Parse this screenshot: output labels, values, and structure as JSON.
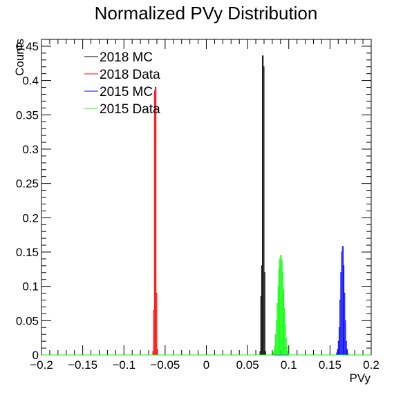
{
  "chart_data": {
    "type": "line",
    "style": "step-histogram",
    "title": "Normalized PVy Distribution",
    "xlabel": "PVy",
    "ylabel": "Counts",
    "xlim": [
      -0.2,
      0.2
    ],
    "ylim": [
      0,
      0.46
    ],
    "x_ticks": [
      -0.2,
      -0.15,
      -0.1,
      -0.05,
      0,
      0.05,
      0.1,
      0.15,
      0.2
    ],
    "x_tick_labels": [
      "−0.2",
      "−0.15",
      "−0.1",
      "−0.05",
      "0",
      "0.05",
      "0.1",
      "0.15",
      "0.2"
    ],
    "y_ticks": [
      0,
      0.05,
      0.1,
      0.15,
      0.2,
      0.25,
      0.3,
      0.35,
      0.4,
      0.45
    ],
    "y_tick_labels": [
      "0",
      "0.05",
      "0.1",
      "0.15",
      "0.2",
      "0.25",
      "0.3",
      "0.35",
      "0.4",
      "0.45"
    ],
    "grid": false,
    "legend_position": "top-left",
    "bin_width": 0.001,
    "series": [
      {
        "name": "2018 MC",
        "color": "#000000",
        "bins": [
          [
            0.065,
            0.005
          ],
          [
            0.066,
            0.085
          ],
          [
            0.067,
            0.13
          ],
          [
            0.068,
            0.436
          ],
          [
            0.069,
            0.42
          ],
          [
            0.07,
            0.12
          ],
          [
            0.071,
            0.005
          ]
        ]
      },
      {
        "name": "2018 Data",
        "color": "#ff0000",
        "bins": [
          [
            -0.065,
            0.005
          ],
          [
            -0.064,
            0.065
          ],
          [
            -0.063,
            0.385
          ],
          [
            -0.062,
            0.39
          ],
          [
            -0.061,
            0.09
          ],
          [
            -0.06,
            0.008
          ]
        ]
      },
      {
        "name": "2015 MC",
        "color": "#0000ff",
        "bins": [
          [
            0.158,
            0.003
          ],
          [
            0.159,
            0.008
          ],
          [
            0.16,
            0.02
          ],
          [
            0.161,
            0.04
          ],
          [
            0.162,
            0.08
          ],
          [
            0.163,
            0.12
          ],
          [
            0.164,
            0.15
          ],
          [
            0.165,
            0.158
          ],
          [
            0.166,
            0.13
          ],
          [
            0.167,
            0.09
          ],
          [
            0.168,
            0.05
          ],
          [
            0.169,
            0.02
          ],
          [
            0.17,
            0.008
          ],
          [
            0.171,
            0.002
          ]
        ]
      },
      {
        "name": "2015 Data",
        "color": "#00ff00",
        "bins": [
          [
            0.081,
            0.003
          ],
          [
            0.082,
            0.006
          ],
          [
            0.083,
            0.013
          ],
          [
            0.084,
            0.03
          ],
          [
            0.085,
            0.05
          ],
          [
            0.086,
            0.075
          ],
          [
            0.087,
            0.1
          ],
          [
            0.088,
            0.125
          ],
          [
            0.089,
            0.14
          ],
          [
            0.09,
            0.145
          ],
          [
            0.091,
            0.137
          ],
          [
            0.092,
            0.12
          ],
          [
            0.093,
            0.095
          ],
          [
            0.094,
            0.068
          ],
          [
            0.095,
            0.045
          ],
          [
            0.096,
            0.025
          ],
          [
            0.097,
            0.012
          ],
          [
            0.098,
            0.005
          ],
          [
            0.099,
            0.002
          ]
        ]
      }
    ]
  }
}
